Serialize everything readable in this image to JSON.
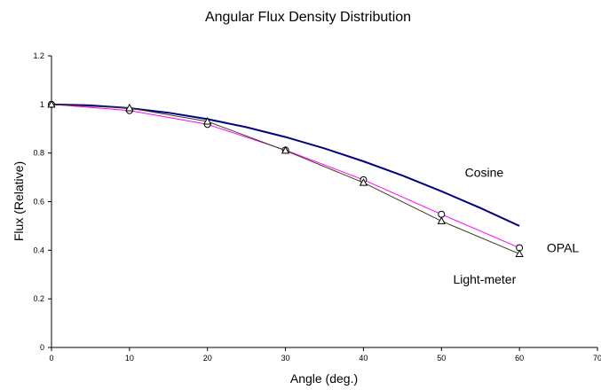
{
  "chart_data": {
    "type": "line",
    "title": "Angular Flux Density Distribution",
    "xlabel": "Angle (deg.)",
    "ylabel": "Flux (Relative)",
    "xlim": [
      0,
      70
    ],
    "ylim": [
      0,
      1.2
    ],
    "xticks": [
      0,
      10,
      20,
      30,
      40,
      50,
      60,
      70
    ],
    "yticks": [
      0,
      0.2,
      0.4,
      0.6,
      0.8,
      1,
      1.2
    ],
    "grid": false,
    "series": [
      {
        "name": "Cosine",
        "color": "#000080",
        "marker": "none",
        "x": [
          0,
          5,
          10,
          15,
          20,
          25,
          30,
          35,
          40,
          45,
          50,
          55,
          60
        ],
        "y": [
          1.0,
          0.9962,
          0.9848,
          0.9659,
          0.9397,
          0.9063,
          0.866,
          0.8192,
          0.766,
          0.7071,
          0.6428,
          0.5736,
          0.5
        ]
      },
      {
        "name": "OPAL",
        "color": "#ff00ff",
        "marker": "circle",
        "x": [
          0,
          10,
          20,
          30,
          40,
          50,
          60
        ],
        "y": [
          1.0,
          0.975,
          0.918,
          0.812,
          0.69,
          0.548,
          0.41
        ]
      },
      {
        "name": "Light-meter",
        "color": "#3a3a1a",
        "marker": "triangle",
        "x": [
          0,
          10,
          20,
          30,
          40,
          50,
          60
        ],
        "y": [
          1.0,
          0.985,
          0.93,
          0.81,
          0.678,
          0.52,
          0.385
        ]
      }
    ],
    "annotations": [
      {
        "text": "Cosine",
        "x": 53,
        "y": 0.72
      },
      {
        "text": "OPAL",
        "x": 63.5,
        "y": 0.41
      },
      {
        "text": "Light-meter",
        "x": 51.5,
        "y": 0.28
      }
    ]
  }
}
